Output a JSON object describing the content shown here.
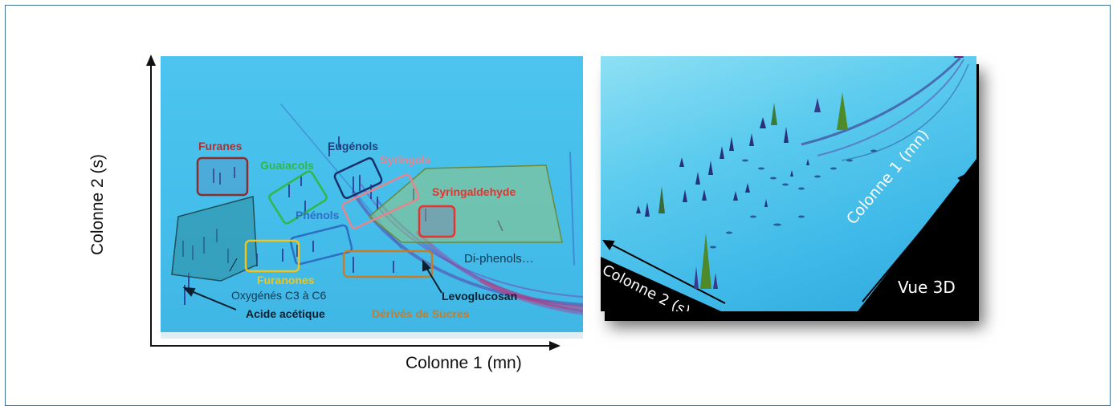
{
  "left_panel": {
    "y_axis_label": "Colonne 2 (s)",
    "x_axis_label": "Colonne 1 (mn)",
    "regions": {
      "furanes": "Furanes",
      "guaiacols": "Guaiacols",
      "eugenols": "Eugénols",
      "syringols": "Syringols",
      "syringaldehyde": "Syringaldehyde",
      "phenols": "Phénols",
      "furanones": "Furanones",
      "oxygenes": "Oxygénés C3 à C6",
      "di_phenols": "Di-phenols…",
      "levoglucosan": "Levoglucosan",
      "acide_acetique": "Acide acétique",
      "derives_sucres": "Dérivés de Sucres"
    },
    "colors": {
      "furanes": "#a83232",
      "guaiacols": "#2fb84a",
      "eugenols": "#1b3f7a",
      "syringols": "#e9848a",
      "syringaldehyde": "#e8322e",
      "phenols": "#2d6fc2",
      "furanones": "#f2c418",
      "derives_sucres": "#c77c27",
      "background": "#47c0ec"
    }
  },
  "right_panel": {
    "axis_col1": "Colonne 1 (mn)",
    "axis_col2": "Colonne 2 (s)",
    "vue_label": "Vue 3D"
  }
}
